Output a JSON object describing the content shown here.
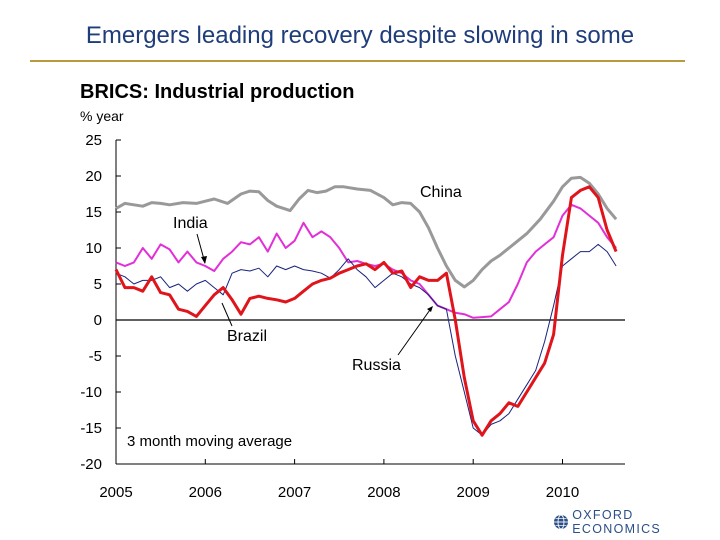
{
  "slide": {
    "title": "Emergers leading recovery despite slowing in some",
    "accent_color": "#b99a3f",
    "title_color": "#1f3d7a"
  },
  "logo": {
    "text": "OXFORD ECONOMICS",
    "icon": "globe-icon"
  },
  "chart_data": {
    "type": "line",
    "title": "BRICS: Industrial production",
    "ylabel": "% year",
    "xlabel": "",
    "ylim": [
      -20,
      25
    ],
    "xlim": [
      2005,
      2010.7
    ],
    "y_ticks": [
      25,
      20,
      15,
      10,
      5,
      0,
      -5,
      -10,
      -15,
      -20
    ],
    "y_tick_labels": [
      "25",
      "20",
      "15",
      "10",
      "5",
      "0",
      "-5",
      "-10",
      "-15",
      "-20"
    ],
    "x_ticks": [
      2005,
      2006,
      2007,
      2008,
      2009,
      2010
    ],
    "x_tick_labels": [
      "2005",
      "2006",
      "2007",
      "2008",
      "2009",
      "2010"
    ],
    "note": "3 month moving average",
    "series": [
      {
        "name": "China",
        "label": "China",
        "color": "#999999",
        "x": [
          2005.0,
          2005.1,
          2005.2,
          2005.3,
          2005.4,
          2005.5,
          2005.6,
          2005.75,
          2005.9,
          2006.0,
          2006.1,
          2006.25,
          2006.4,
          2006.5,
          2006.6,
          2006.7,
          2006.8,
          2006.95,
          2007.05,
          2007.15,
          2007.25,
          2007.35,
          2007.45,
          2007.55,
          2007.7,
          2007.85,
          2008.0,
          2008.1,
          2008.2,
          2008.3,
          2008.4,
          2008.5,
          2008.6,
          2008.7,
          2008.8,
          2008.9,
          2009.0,
          2009.1,
          2009.2,
          2009.3,
          2009.45,
          2009.6,
          2009.75,
          2009.9,
          2010.0,
          2010.1,
          2010.2,
          2010.3,
          2010.4,
          2010.5,
          2010.6
        ],
        "y": [
          15.5,
          16.2,
          16.0,
          15.8,
          16.3,
          16.2,
          16.0,
          16.3,
          16.2,
          16.5,
          16.8,
          16.2,
          17.5,
          17.9,
          17.8,
          16.6,
          15.8,
          15.2,
          16.8,
          18.0,
          17.7,
          17.9,
          18.5,
          18.5,
          18.2,
          18.0,
          17.0,
          16.0,
          16.3,
          16.2,
          15.0,
          12.8,
          10.0,
          7.5,
          5.5,
          4.6,
          5.5,
          7.0,
          8.2,
          9.0,
          10.5,
          12.0,
          14.0,
          16.5,
          18.5,
          19.7,
          19.8,
          19.0,
          17.5,
          15.5,
          14.0
        ]
      },
      {
        "name": "India",
        "label": "India",
        "color": "#e22fd7",
        "x": [
          2005.0,
          2005.1,
          2005.2,
          2005.3,
          2005.4,
          2005.5,
          2005.6,
          2005.7,
          2005.8,
          2005.9,
          2006.0,
          2006.1,
          2006.2,
          2006.3,
          2006.4,
          2006.5,
          2006.6,
          2006.7,
          2006.8,
          2006.9,
          2007.0,
          2007.1,
          2007.2,
          2007.3,
          2007.4,
          2007.5,
          2007.6,
          2007.7,
          2007.8,
          2007.9,
          2008.0,
          2008.1,
          2008.2,
          2008.3,
          2008.4,
          2008.5,
          2008.6,
          2008.7,
          2008.8,
          2008.9,
          2009.0,
          2009.1,
          2009.2,
          2009.3,
          2009.4,
          2009.5,
          2009.6,
          2009.7,
          2009.8,
          2009.9,
          2010.0,
          2010.1,
          2010.2,
          2010.3,
          2010.4,
          2010.5,
          2010.6
        ],
        "y": [
          8.0,
          7.5,
          8.0,
          10.0,
          8.5,
          10.5,
          9.8,
          8.0,
          9.5,
          8.0,
          7.5,
          6.8,
          8.5,
          9.5,
          10.8,
          10.5,
          11.5,
          9.5,
          12.0,
          10.0,
          11.0,
          13.5,
          11.5,
          12.3,
          11.5,
          10.0,
          8.0,
          8.2,
          7.8,
          7.5,
          7.8,
          7.0,
          6.5,
          5.5,
          5.0,
          3.5,
          2.0,
          1.5,
          1.0,
          0.8,
          0.3,
          0.4,
          0.5,
          1.5,
          2.5,
          5.0,
          8.0,
          9.5,
          10.5,
          11.5,
          14.5,
          16.0,
          15.5,
          14.5,
          13.5,
          11.5,
          10.0
        ]
      },
      {
        "name": "Brazil",
        "label": "Brazil",
        "color": "#1a237e",
        "x": [
          2005.0,
          2005.1,
          2005.2,
          2005.3,
          2005.4,
          2005.5,
          2005.6,
          2005.7,
          2005.8,
          2005.9,
          2006.0,
          2006.1,
          2006.2,
          2006.3,
          2006.4,
          2006.5,
          2006.6,
          2006.7,
          2006.8,
          2006.9,
          2007.0,
          2007.1,
          2007.2,
          2007.3,
          2007.4,
          2007.5,
          2007.6,
          2007.7,
          2007.8,
          2007.9,
          2008.0,
          2008.1,
          2008.2,
          2008.3,
          2008.4,
          2008.5,
          2008.6,
          2008.7,
          2008.8,
          2008.9,
          2009.0,
          2009.1,
          2009.2,
          2009.3,
          2009.4,
          2009.5,
          2009.6,
          2009.7,
          2009.8,
          2009.9,
          2010.0,
          2010.1,
          2010.2,
          2010.3,
          2010.4,
          2010.5,
          2010.6
        ],
        "y": [
          6.5,
          6.0,
          5.0,
          5.5,
          5.5,
          6.0,
          4.5,
          5.0,
          4.0,
          5.0,
          5.5,
          4.5,
          3.5,
          6.5,
          7.0,
          6.8,
          7.2,
          6.0,
          7.5,
          7.0,
          7.5,
          7.0,
          6.8,
          6.5,
          5.8,
          7.0,
          8.5,
          7.0,
          6.0,
          4.5,
          5.5,
          6.5,
          6.0,
          5.0,
          4.5,
          3.5,
          2.0,
          1.5,
          -5.0,
          -10.0,
          -15.0,
          -16.0,
          -14.5,
          -14.0,
          -13.0,
          -11.0,
          -9.0,
          -7.0,
          -3.0,
          2.0,
          7.5,
          8.5,
          9.5,
          9.5,
          10.5,
          9.5,
          7.5
        ]
      },
      {
        "name": "Russia",
        "label": "Russia",
        "color": "#e0141b",
        "x": [
          2005.0,
          2005.1,
          2005.2,
          2005.3,
          2005.4,
          2005.5,
          2005.6,
          2005.7,
          2005.8,
          2005.9,
          2006.0,
          2006.1,
          2006.2,
          2006.3,
          2006.4,
          2006.5,
          2006.6,
          2006.7,
          2006.8,
          2006.9,
          2007.0,
          2007.1,
          2007.2,
          2007.3,
          2007.4,
          2007.5,
          2007.6,
          2007.7,
          2007.8,
          2007.9,
          2008.0,
          2008.1,
          2008.2,
          2008.3,
          2008.4,
          2008.5,
          2008.6,
          2008.7,
          2008.8,
          2008.9,
          2009.0,
          2009.1,
          2009.2,
          2009.3,
          2009.4,
          2009.5,
          2009.6,
          2009.7,
          2009.8,
          2009.9,
          2010.0,
          2010.1,
          2010.2,
          2010.3,
          2010.4,
          2010.5,
          2010.6
        ],
        "y": [
          7.0,
          4.5,
          4.5,
          4.0,
          6.0,
          3.8,
          3.5,
          1.5,
          1.2,
          0.5,
          2.0,
          3.5,
          4.5,
          2.8,
          0.8,
          3.0,
          3.3,
          3.0,
          2.8,
          2.5,
          3.0,
          4.0,
          5.0,
          5.5,
          5.8,
          6.5,
          7.0,
          7.5,
          7.8,
          7.0,
          8.0,
          6.5,
          6.8,
          4.5,
          6.0,
          5.5,
          5.5,
          6.5,
          0.0,
          -8.0,
          -14.0,
          -16.0,
          -14.0,
          -13.0,
          -11.5,
          -12.0,
          -10.0,
          -8.0,
          -6.0,
          -2.0,
          9.0,
          17.0,
          18.0,
          18.5,
          17.0,
          12.5,
          9.5
        ]
      }
    ]
  }
}
